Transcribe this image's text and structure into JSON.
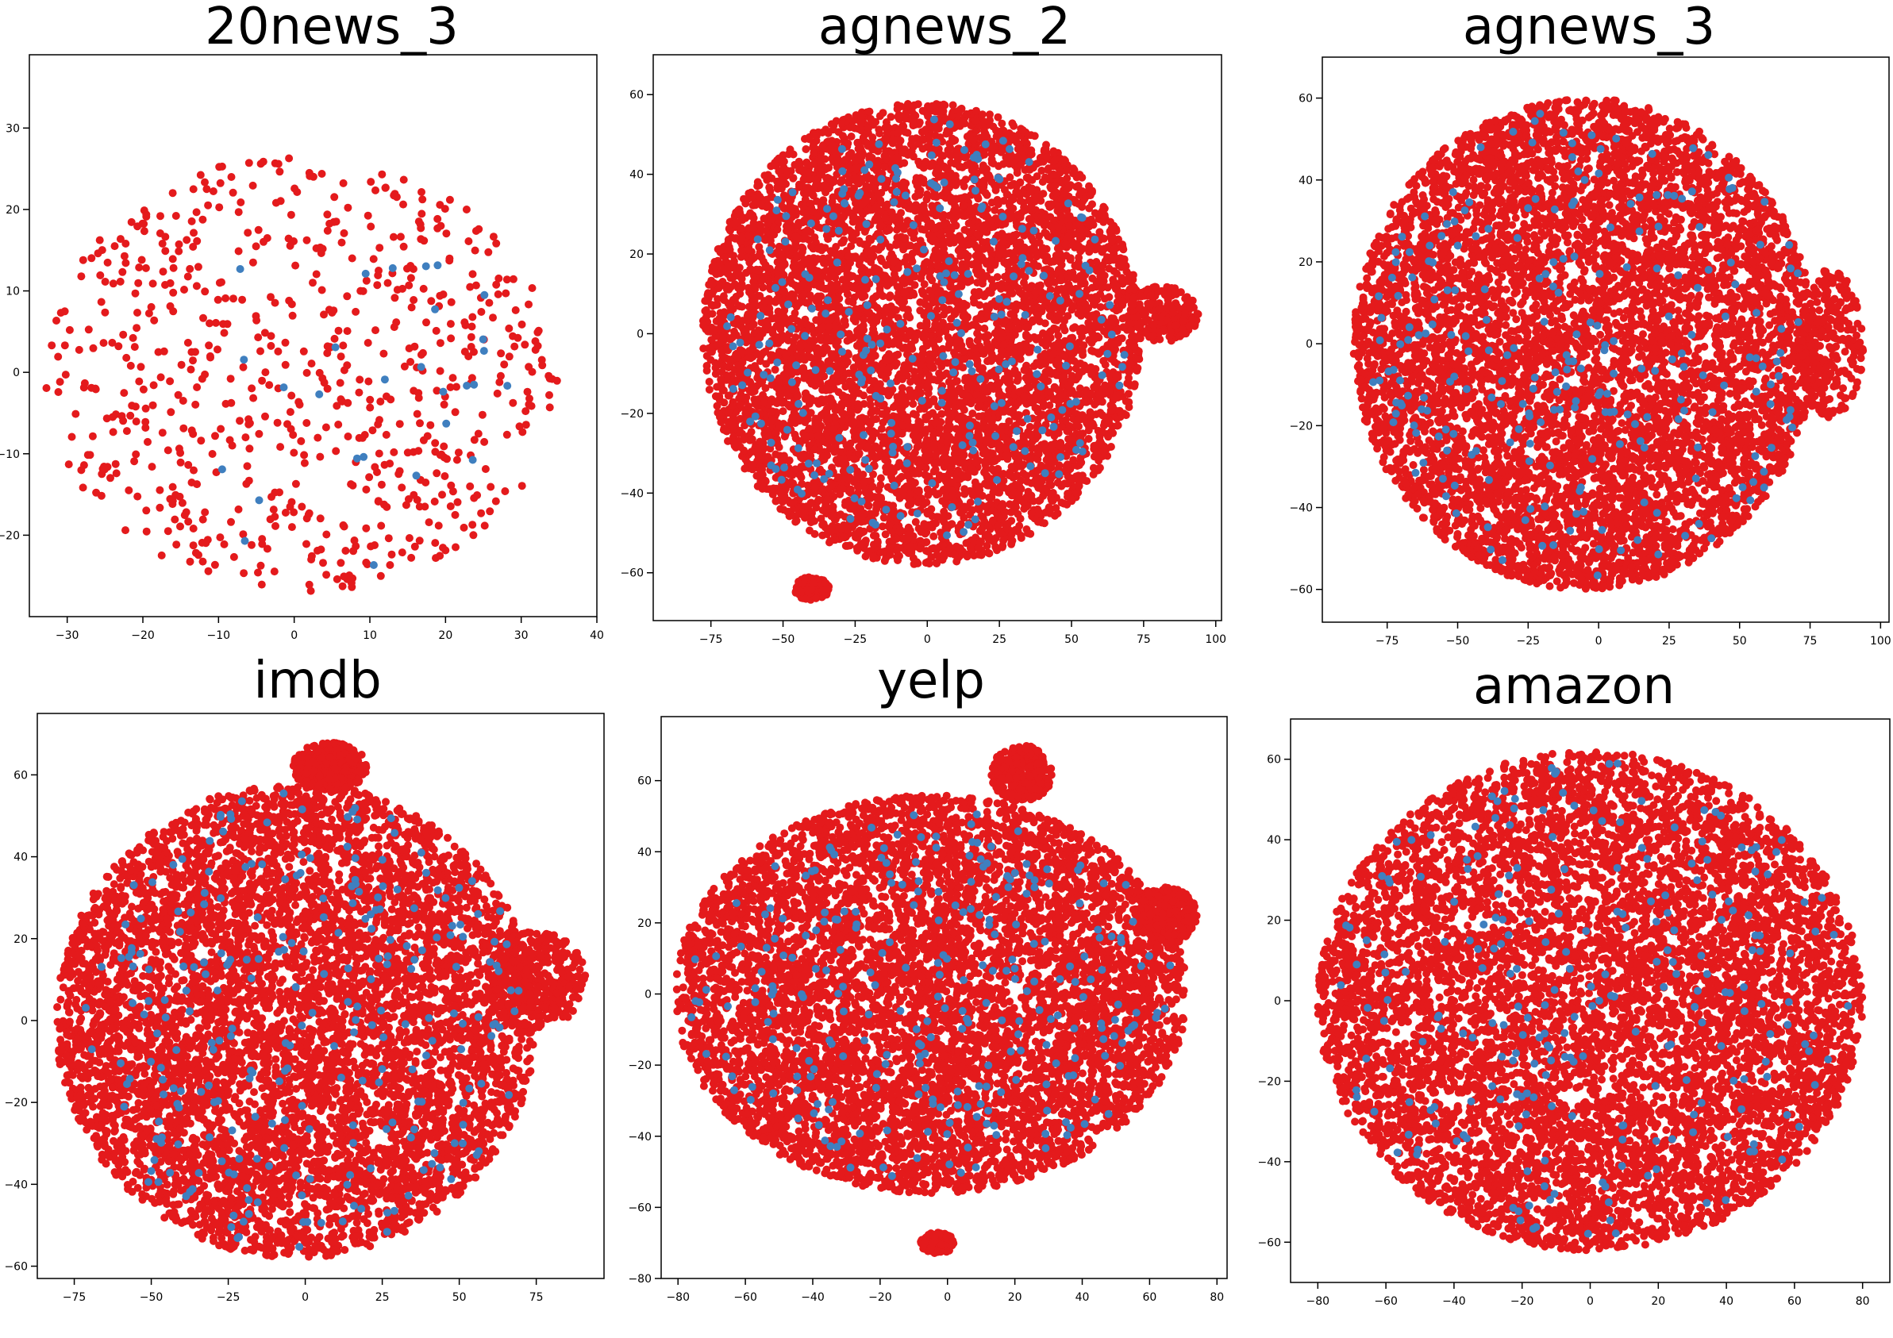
{
  "figure": {
    "colors": {
      "red": "#e41a1c",
      "blue": "#3f7fbf",
      "frame": "#000000",
      "background": "#ffffff"
    }
  },
  "chart_data": [
    {
      "type": "scatter",
      "title": "20news_3",
      "xlabel": "",
      "ylabel": "",
      "xlim": [
        -35,
        40
      ],
      "ylim": [
        -30,
        39
      ],
      "xticks": [
        -30,
        -20,
        -10,
        0,
        10,
        20,
        30,
        40
      ],
      "yticks": [
        -20,
        -10,
        0,
        10,
        20,
        30
      ],
      "grid": false,
      "series": [
        {
          "color": "red",
          "count": 700,
          "clusters": [
            {
              "cx": 1,
              "cy": 0,
              "rx": 34,
              "ry": 27,
              "w": 1
            }
          ]
        },
        {
          "color": "blue",
          "count": 28,
          "clusters": [
            {
              "cx": 3,
              "cy": -2,
              "rx": 26,
              "ry": 23,
              "w": 1
            }
          ]
        }
      ]
    },
    {
      "type": "scatter",
      "title": "agnews_2",
      "xlabel": "",
      "ylabel": "",
      "xlim": [
        -95,
        102
      ],
      "ylim": [
        -72,
        70
      ],
      "xticks": [
        -75,
        -50,
        -25,
        0,
        25,
        50,
        75,
        100
      ],
      "yticks": [
        -60,
        -40,
        -20,
        0,
        20,
        40,
        60
      ],
      "grid": false,
      "series": [
        {
          "color": "red",
          "count": 7000,
          "clusters": [
            {
              "cx": -2,
              "cy": 0,
              "rx": 76,
              "ry": 58,
              "w": 0.95
            },
            {
              "cx": 82,
              "cy": 5,
              "rx": 12,
              "ry": 7,
              "w": 0.03
            },
            {
              "cx": -40,
              "cy": -64,
              "rx": 6,
              "ry": 3,
              "w": 0.02
            }
          ]
        },
        {
          "color": "blue",
          "count": 240,
          "clusters": [
            {
              "cx": 0,
              "cy": 0,
              "rx": 70,
              "ry": 54,
              "w": 1
            }
          ]
        }
      ]
    },
    {
      "type": "scatter",
      "title": "agnews_3",
      "xlabel": "",
      "ylabel": "",
      "xlim": [
        -98,
        103
      ],
      "ylim": [
        -68,
        70
      ],
      "xticks": [
        -75,
        -50,
        -25,
        0,
        25,
        50,
        75,
        100
      ],
      "yticks": [
        -60,
        -40,
        -20,
        0,
        20,
        40,
        60
      ],
      "grid": false,
      "series": [
        {
          "color": "red",
          "count": 7000,
          "clusters": [
            {
              "cx": -5,
              "cy": 0,
              "rx": 82,
              "ry": 60,
              "w": 0.96
            },
            {
              "cx": 82,
              "cy": 0,
              "rx": 12,
              "ry": 18,
              "w": 0.04
            }
          ]
        },
        {
          "color": "blue",
          "count": 240,
          "clusters": [
            {
              "cx": -3,
              "cy": 0,
              "rx": 78,
              "ry": 58,
              "w": 1
            }
          ]
        }
      ]
    },
    {
      "type": "scatter",
      "title": "imdb",
      "xlabel": "",
      "ylabel": "",
      "xlim": [
        -87,
        97
      ],
      "ylim": [
        -63,
        75
      ],
      "xticks": [
        -75,
        -50,
        -25,
        0,
        25,
        50,
        75
      ],
      "yticks": [
        -60,
        -40,
        -20,
        0,
        20,
        40,
        60
      ],
      "grid": false,
      "series": [
        {
          "color": "red",
          "count": 7000,
          "clusters": [
            {
              "cx": -3,
              "cy": 0,
              "rx": 78,
              "ry": 58,
              "w": 0.9
            },
            {
              "cx": 75,
              "cy": 10,
              "rx": 16,
              "ry": 12,
              "w": 0.05
            },
            {
              "cx": 8,
              "cy": 62,
              "rx": 12,
              "ry": 6,
              "w": 0.05
            }
          ]
        },
        {
          "color": "blue",
          "count": 260,
          "clusters": [
            {
              "cx": 0,
              "cy": 0,
              "rx": 72,
              "ry": 56,
              "w": 1
            }
          ]
        }
      ]
    },
    {
      "type": "scatter",
      "title": "yelp",
      "xlabel": "",
      "ylabel": "",
      "xlim": [
        -85,
        83
      ],
      "ylim": [
        -80,
        78
      ],
      "xticks": [
        -80,
        -60,
        -40,
        -20,
        0,
        20,
        40,
        60,
        80
      ],
      "yticks": [
        -80,
        -60,
        -40,
        -20,
        0,
        20,
        40,
        60
      ],
      "grid": false,
      "series": [
        {
          "color": "red",
          "count": 7000,
          "clusters": [
            {
              "cx": -5,
              "cy": 0,
              "rx": 76,
              "ry": 56,
              "w": 0.9
            },
            {
              "cx": 65,
              "cy": 22,
              "rx": 9,
              "ry": 8,
              "w": 0.04
            },
            {
              "cx": 22,
              "cy": 62,
              "rx": 9,
              "ry": 8,
              "w": 0.04
            },
            {
              "cx": -3,
              "cy": -70,
              "rx": 5,
              "ry": 3,
              "w": 0.02
            }
          ]
        },
        {
          "color": "blue",
          "count": 260,
          "clusters": [
            {
              "cx": -5,
              "cy": 0,
              "rx": 72,
              "ry": 52,
              "w": 1
            }
          ]
        }
      ]
    },
    {
      "type": "scatter",
      "title": "amazon",
      "xlabel": "",
      "ylabel": "",
      "xlim": [
        -88,
        88
      ],
      "ylim": [
        -70,
        70
      ],
      "xticks": [
        -80,
        -60,
        -40,
        -20,
        0,
        20,
        40,
        60,
        80
      ],
      "yticks": [
        -60,
        -40,
        -20,
        0,
        20,
        40,
        60
      ],
      "grid": false,
      "series": [
        {
          "color": "red",
          "count": 7000,
          "clusters": [
            {
              "cx": 0,
              "cy": 0,
              "rx": 80,
              "ry": 62,
              "w": 1
            }
          ]
        },
        {
          "color": "blue",
          "count": 240,
          "clusters": [
            {
              "cx": 0,
              "cy": 0,
              "rx": 76,
              "ry": 60,
              "w": 1
            }
          ]
        }
      ]
    }
  ]
}
